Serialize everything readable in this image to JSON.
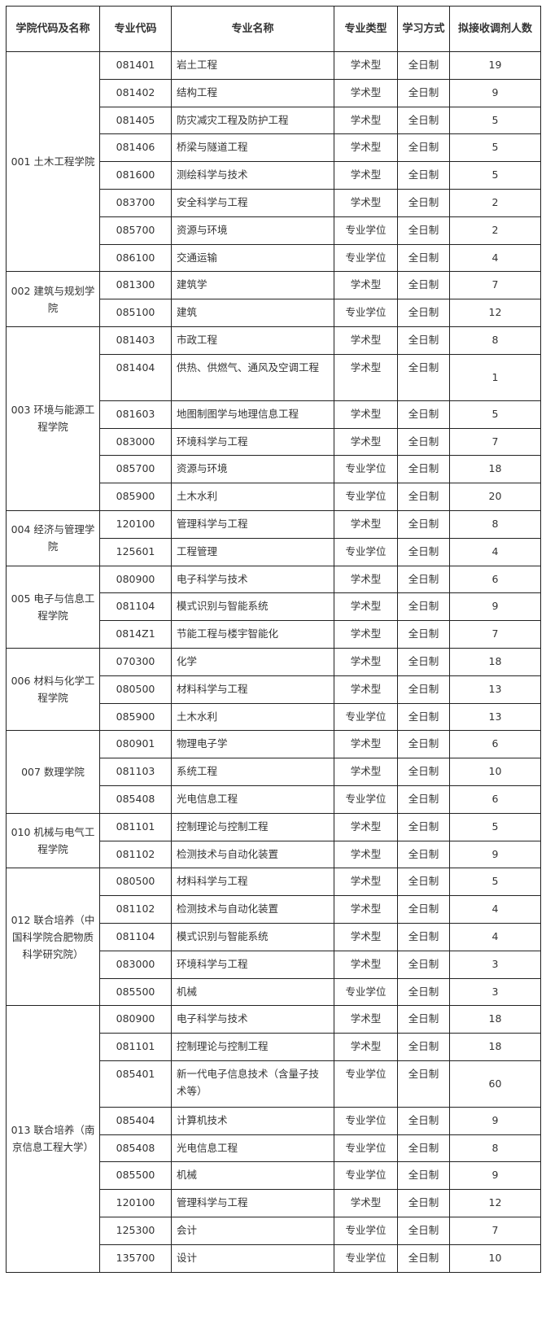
{
  "headers": [
    "学院代码及名称",
    "专业代码",
    "专业名称",
    "专业类型",
    "学习方式",
    "拟接收调剂人数"
  ],
  "colleges": [
    {
      "name": "001 土木工程学院",
      "majors": [
        [
          "081401",
          "岩土工程",
          "学术型",
          "全日制",
          "19"
        ],
        [
          "081402",
          "结构工程",
          "学术型",
          "全日制",
          "9"
        ],
        [
          "081405",
          "防灾减灾工程及防护工程",
          "学术型",
          "全日制",
          "5"
        ],
        [
          "081406",
          "桥梁与隧道工程",
          "学术型",
          "全日制",
          "5"
        ],
        [
          "081600",
          "测绘科学与技术",
          "学术型",
          "全日制",
          "5"
        ],
        [
          "083700",
          "安全科学与工程",
          "学术型",
          "全日制",
          "2"
        ],
        [
          "085700",
          "资源与环境",
          "专业学位",
          "全日制",
          "2"
        ],
        [
          "086100",
          "交通运输",
          "专业学位",
          "全日制",
          "4"
        ]
      ]
    },
    {
      "name": "002 建筑与规划学院",
      "majors": [
        [
          "081300",
          "建筑学",
          "学术型",
          "全日制",
          "7"
        ],
        [
          "085100",
          "建筑",
          "专业学位",
          "全日制",
          "12"
        ]
      ]
    },
    {
      "name": "003 环境与能源工程学院",
      "majors": [
        [
          "081403",
          "市政工程",
          "学术型",
          "全日制",
          "8"
        ],
        [
          "081404",
          "供热、供燃气、通风及空调工程",
          "学术型",
          "全日制",
          "1"
        ],
        [
          "081603",
          "地图制图学与地理信息工程",
          "学术型",
          "全日制",
          "5"
        ],
        [
          "083000",
          "环境科学与工程",
          "学术型",
          "全日制",
          "7"
        ],
        [
          "085700",
          "资源与环境",
          "专业学位",
          "全日制",
          "18"
        ],
        [
          "085900",
          "土木水利",
          "专业学位",
          "全日制",
          "20"
        ]
      ]
    },
    {
      "name": "004 经济与管理学院",
      "majors": [
        [
          "120100",
          "管理科学与工程",
          "学术型",
          "全日制",
          "8"
        ],
        [
          "125601",
          "工程管理",
          "专业学位",
          "全日制",
          "4"
        ]
      ]
    },
    {
      "name": "005 电子与信息工程学院",
      "majors": [
        [
          "080900",
          "电子科学与技术",
          "学术型",
          "全日制",
          "6"
        ],
        [
          "081104",
          "模式识别与智能系统",
          "学术型",
          "全日制",
          "9"
        ],
        [
          "0814Z1",
          "节能工程与楼宇智能化",
          "学术型",
          "全日制",
          "7"
        ]
      ]
    },
    {
      "name": "006 材料与化学工程学院",
      "majors": [
        [
          "070300",
          "化学",
          "学术型",
          "全日制",
          "18"
        ],
        [
          "080500",
          "材料科学与工程",
          "学术型",
          "全日制",
          "13"
        ],
        [
          "085900",
          "土木水利",
          "专业学位",
          "全日制",
          "13"
        ]
      ]
    },
    {
      "name": "007 数理学院",
      "majors": [
        [
          "080901",
          "物理电子学",
          "学术型",
          "全日制",
          "6"
        ],
        [
          "081103",
          "系统工程",
          "学术型",
          "全日制",
          "10"
        ],
        [
          "085408",
          "光电信息工程",
          "专业学位",
          "全日制",
          "6"
        ]
      ]
    },
    {
      "name": "010 机械与电气工程学院",
      "majors": [
        [
          "081101",
          "控制理论与控制工程",
          "学术型",
          "全日制",
          "5"
        ],
        [
          "081102",
          "检测技术与自动化装置",
          "学术型",
          "全日制",
          "9"
        ]
      ]
    },
    {
      "name": "012 联合培养（中国科学院合肥物质科学研究院）",
      "majors": [
        [
          "080500",
          "材料科学与工程",
          "学术型",
          "全日制",
          "5"
        ],
        [
          "081102",
          "检测技术与自动化装置",
          "学术型",
          "全日制",
          "4"
        ],
        [
          "081104",
          "模式识别与智能系统",
          "学术型",
          "全日制",
          "4"
        ],
        [
          "083000",
          "环境科学与工程",
          "学术型",
          "全日制",
          "3"
        ],
        [
          "085500",
          "机械",
          "专业学位",
          "全日制",
          "3"
        ]
      ]
    },
    {
      "name": "013 联合培养（南京信息工程大学）",
      "majors": [
        [
          "080900",
          "电子科学与技术",
          "学术型",
          "全日制",
          "18"
        ],
        [
          "081101",
          "控制理论与控制工程",
          "学术型",
          "全日制",
          "18"
        ],
        [
          "085401",
          "新一代电子信息技术（含量子技术等）",
          "专业学位",
          "全日制",
          "60"
        ],
        [
          "085404",
          "计算机技术",
          "专业学位",
          "全日制",
          "9"
        ],
        [
          "085408",
          "光电信息工程",
          "专业学位",
          "全日制",
          "8"
        ],
        [
          "085500",
          "机械",
          "专业学位",
          "全日制",
          "9"
        ],
        [
          "120100",
          "管理科学与工程",
          "学术型",
          "全日制",
          "12"
        ],
        [
          "125300",
          "会计",
          "专业学位",
          "全日制",
          "7"
        ],
        [
          "135700",
          "设计",
          "专业学位",
          "全日制",
          "10"
        ]
      ]
    }
  ]
}
